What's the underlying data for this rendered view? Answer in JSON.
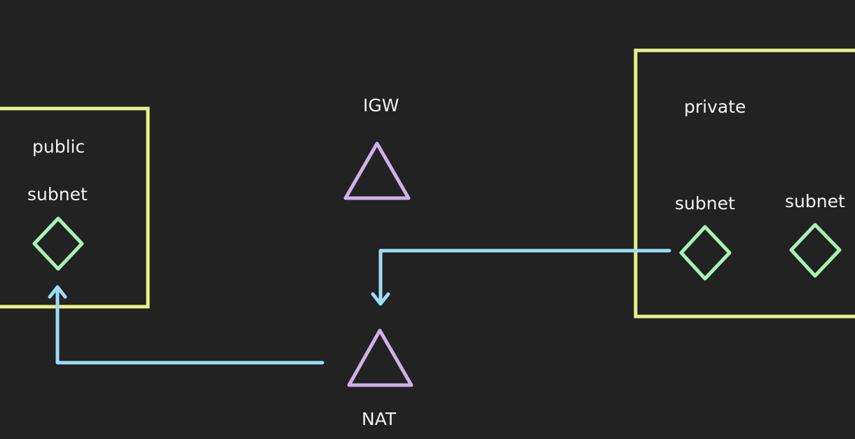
{
  "colors": {
    "background": "#222222",
    "box": "#e6f28a",
    "gateway": "#cfb1e8",
    "subnet": "#a7f2b4",
    "arrow": "#9ddcf5",
    "text": "#f2f2f2"
  },
  "labels": {
    "public": "public",
    "public_subnet": "subnet",
    "igw": "IGW",
    "nat": "NAT",
    "private": "private",
    "private_subnet_1": "subnet",
    "private_subnet_2": "subnet"
  },
  "icons": {
    "gateway": "triangle",
    "subnet": "diamond"
  }
}
